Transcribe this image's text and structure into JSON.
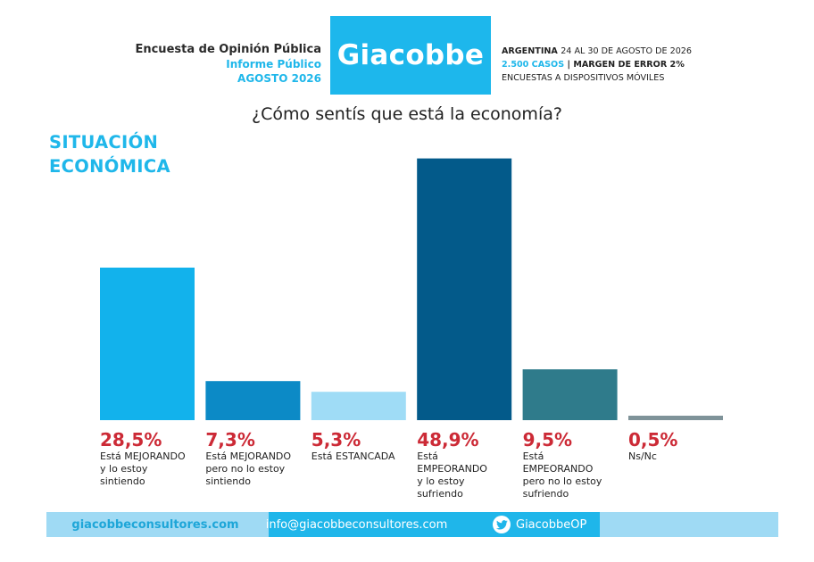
{
  "header": {
    "survey_title": "Encuesta de Opinión Pública",
    "report_type": "Informe Público",
    "report_date": "AGOSTO 2026",
    "brand": "Giacobbe",
    "country": "ARGENTINA",
    "field_dates": "24 AL 30 DE AGOSTO DE 2026",
    "cases": "2.500 CASOS",
    "margin": "MARGEN DE ERROR 2%",
    "method": "ENCUESTAS A DISPOSITIVOS MÓVILES"
  },
  "question": "¿Cómo sentís que está la economía?",
  "section_title": [
    "SITUACIÓN",
    "ECONÓMICA"
  ],
  "chart_data": {
    "type": "bar",
    "categories": [
      "Está MEJORANDO y lo estoy sintiendo",
      "Está MEJORANDO pero no lo estoy sintiendo",
      "Está ESTANCADA",
      "Está EMPEORANDO y lo estoy sufriendo",
      "Está EMPEORANDO pero no lo estoy sufriendo",
      "Ns/Nc"
    ],
    "category_lines": [
      "Está MEJORANDO\ny lo estoy\nsintiendo",
      "Está MEJORANDO\npero no lo estoy\nsintiendo",
      "Está ESTANCADA",
      "Está\nEMPEORANDO\ny lo estoy\nsufriendo",
      "Está\nEMPEORANDO\npero no lo estoy\nsufriendo",
      "Ns/Nc"
    ],
    "values": [
      28.5,
      7.3,
      5.3,
      48.9,
      9.5,
      0.5
    ],
    "value_labels": [
      "28,5%",
      "7,3%",
      "5,3%",
      "48,9%",
      "9,5%",
      "0,5%"
    ],
    "colors": [
      "#12b2ec",
      "#0c8ac6",
      "#9fdcf6",
      "#035a8a",
      "#2f7b8b",
      "#7f9399"
    ],
    "ylim": [
      0,
      50
    ],
    "grid": false,
    "legend": "none"
  },
  "footer": {
    "website": "giacobbeconsultores.com",
    "email": "info@giacobbeconsultores.com",
    "twitter": "GiacobbeOP",
    "twitter_icon": "twitter-bird-icon"
  }
}
